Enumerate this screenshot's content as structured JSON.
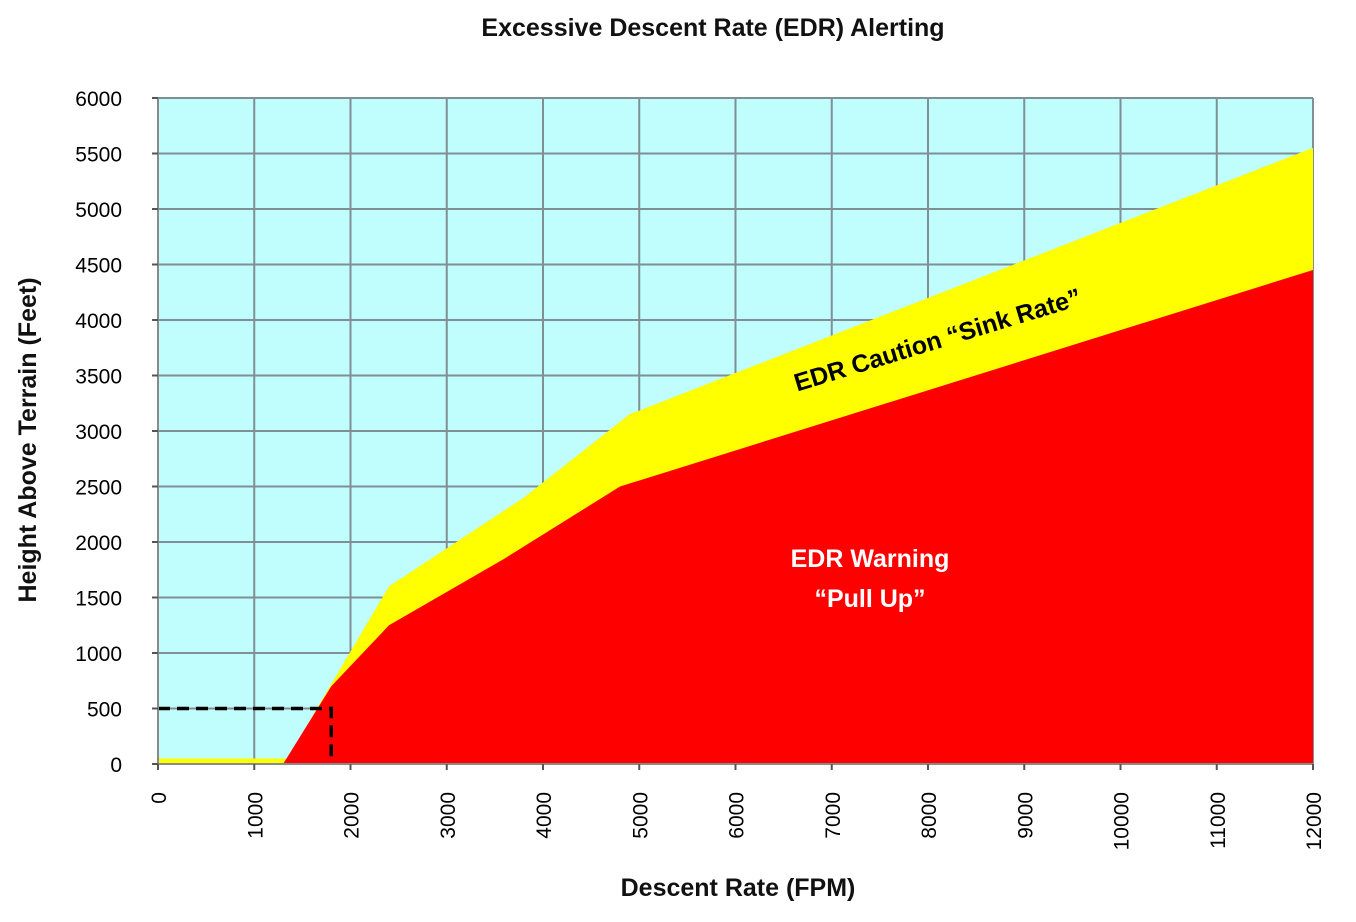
{
  "chart_data": {
    "type": "area",
    "title": "Excessive Descent Rate (EDR) Alerting",
    "xlabel": "Descent Rate (FPM)",
    "ylabel": "Height Above Terrain (Feet)",
    "xlim": [
      0,
      12000
    ],
    "ylim": [
      0,
      6000
    ],
    "x_ticks": [
      "0",
      "1000",
      "2000",
      "3000",
      "4000",
      "5000",
      "6000",
      "7000",
      "8000",
      "9000",
      "10000",
      "11000",
      "12000"
    ],
    "y_ticks": [
      "6000",
      "5500",
      "5000",
      "4500",
      "4000",
      "3500",
      "3000",
      "2500",
      "2000",
      "1500",
      "1000",
      "500",
      "0"
    ],
    "grid": true,
    "series": [
      {
        "name": "EDR Caution “Sink Rate”",
        "color": "#ffff00",
        "x": [
          0,
          1350,
          1650,
          2400,
          3800,
          4900,
          12000
        ],
        "y": [
          50,
          50,
          500,
          1600,
          2400,
          3150,
          5550
        ]
      },
      {
        "name": "EDR Warning “Pull Up”",
        "color": "#ff0000",
        "x": [
          1300,
          1800,
          2400,
          3600,
          4800,
          12000
        ],
        "y": [
          0,
          700,
          1250,
          1850,
          2500,
          4450
        ]
      }
    ],
    "background_color": "#c0fefe",
    "grid_color": "#7f8f95",
    "annotations": {
      "caution_label": "EDR Caution “Sink Rate”",
      "warning_label_line1": "EDR Warning",
      "warning_label_line2": "“Pull Up”",
      "reference_point": {
        "x": 1800,
        "y": 500,
        "style": "dashed"
      }
    }
  }
}
